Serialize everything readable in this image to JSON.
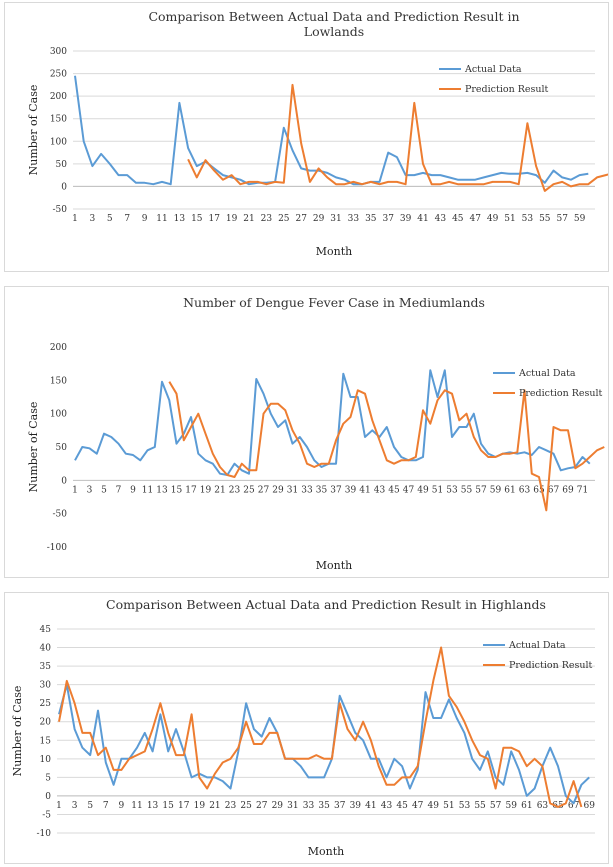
{
  "colors": {
    "actual": "#5b9bd5",
    "prediction": "#ed7d31",
    "grid": "#d9d9d9",
    "axis": "#bfbfbf"
  },
  "chart_data": [
    {
      "type": "line",
      "title": [
        "Comparison Between Actual Data and Prediction Result in",
        "Lowlands"
      ],
      "xlabel": "Month",
      "ylabel": "Number of Case",
      "ylim": [
        -50,
        300
      ],
      "yticks": [
        -50,
        0,
        50,
        100,
        150,
        200,
        250,
        300
      ],
      "xtick_labels": [
        "1",
        "3",
        "5",
        "7",
        "9",
        "11",
        "13",
        "15",
        "17",
        "19",
        "21",
        "23",
        "25",
        "27",
        "29",
        "31",
        "33",
        "35",
        "37",
        "39",
        "41",
        "43",
        "45",
        "47",
        "49",
        "51",
        "53",
        "55",
        "57",
        "59"
      ],
      "grid": true,
      "legend": "top-right",
      "series": [
        {
          "name": "Actual Data",
          "start": 1,
          "values": [
            245,
            100,
            45,
            72,
            50,
            25,
            25,
            8,
            8,
            5,
            10,
            5,
            185,
            85,
            45,
            55,
            40,
            25,
            20,
            15,
            5,
            8,
            8,
            10,
            130,
            80,
            40,
            35,
            35,
            30,
            20,
            15,
            5,
            5,
            10,
            10,
            75,
            65,
            25,
            25,
            30,
            25,
            25,
            20,
            15,
            15,
            15,
            20,
            25,
            30,
            28,
            28,
            30,
            25,
            8,
            35,
            20,
            15,
            25,
            28
          ]
        },
        {
          "name": "Prediction Result",
          "start": 14,
          "values": [
            60,
            20,
            58,
            35,
            15,
            25,
            5,
            10,
            10,
            5,
            10,
            8,
            225,
            95,
            10,
            40,
            20,
            5,
            5,
            10,
            5,
            10,
            5,
            10,
            10,
            5,
            185,
            50,
            5,
            5,
            10,
            5,
            5,
            5,
            5,
            10,
            10,
            10,
            5,
            140,
            45,
            -10,
            5,
            10,
            0,
            5,
            5,
            20,
            25,
            30
          ]
        }
      ]
    },
    {
      "type": "line",
      "title": [
        "Number of Dengue Fever Case in Mediumlands"
      ],
      "xlabel": "Month",
      "ylabel": "Number of Case",
      "ylim": [
        -100,
        200
      ],
      "yticks": [
        -100,
        -50,
        0,
        50,
        100,
        150,
        200
      ],
      "xtick_labels": [
        "1",
        "3",
        "5",
        "7",
        "9",
        "11",
        "13",
        "15",
        "17",
        "19",
        "21",
        "23",
        "25",
        "27",
        "29",
        "31",
        "33",
        "35",
        "37",
        "39",
        "41",
        "43",
        "45",
        "47",
        "49",
        "51",
        "53",
        "55",
        "57",
        "59",
        "61",
        "63",
        "65",
        "67",
        "69",
        "71"
      ],
      "grid": false,
      "legend": "top-right",
      "series": [
        {
          "name": "Actual Data",
          "start": 1,
          "values": [
            30,
            50,
            48,
            40,
            70,
            65,
            55,
            40,
            38,
            30,
            45,
            50,
            148,
            120,
            55,
            70,
            95,
            40,
            30,
            25,
            10,
            8,
            25,
            15,
            10,
            152,
            130,
            100,
            80,
            90,
            55,
            65,
            50,
            30,
            20,
            25,
            25,
            160,
            125,
            125,
            65,
            75,
            65,
            80,
            50,
            35,
            30,
            30,
            35,
            165,
            125,
            165,
            65,
            80,
            80,
            100,
            55,
            40,
            35,
            40,
            42,
            40,
            42,
            38,
            50,
            45,
            40,
            15,
            18,
            20,
            35,
            25
          ]
        },
        {
          "name": "Prediction Result",
          "start": 14,
          "values": [
            148,
            130,
            60,
            80,
            100,
            70,
            40,
            20,
            8,
            5,
            25,
            15,
            15,
            100,
            115,
            115,
            105,
            75,
            55,
            25,
            20,
            25,
            25,
            60,
            85,
            95,
            135,
            130,
            90,
            60,
            30,
            25,
            30,
            30,
            35,
            105,
            85,
            120,
            135,
            130,
            90,
            100,
            65,
            45,
            35,
            35,
            40,
            40,
            42,
            135,
            10,
            5,
            -45,
            80,
            75,
            75,
            18,
            25,
            35,
            45,
            50
          ]
        }
      ]
    },
    {
      "type": "line",
      "title": [
        "Comparison Between Actual Data and Prediction Result in Highlands"
      ],
      "xlabel": "Month",
      "ylabel": "Number of Case",
      "ylim": [
        -10,
        45
      ],
      "yticks": [
        -10,
        -5,
        0,
        5,
        10,
        15,
        20,
        25,
        30,
        35,
        40,
        45
      ],
      "xtick_labels": [
        "1",
        "3",
        "5",
        "7",
        "9",
        "11",
        "13",
        "15",
        "17",
        "19",
        "21",
        "23",
        "25",
        "27",
        "29",
        "31",
        "33",
        "35",
        "37",
        "39",
        "41",
        "43",
        "45",
        "47",
        "49",
        "51",
        "53",
        "55",
        "57",
        "59",
        "61",
        "63",
        "65",
        "67",
        "69"
      ],
      "grid": true,
      "legend": "top-right",
      "series": [
        {
          "name": "Actual Data",
          "start": 1,
          "values": [
            22,
            30,
            18,
            13,
            11,
            23,
            9,
            3,
            10,
            10,
            13,
            17,
            12,
            22,
            12,
            18,
            12,
            5,
            6,
            5,
            5,
            4,
            2,
            12,
            25,
            18,
            16,
            21,
            17,
            10,
            10,
            8,
            5,
            5,
            5,
            10,
            27,
            22,
            17,
            15,
            10,
            10,
            5,
            10,
            8,
            2,
            7,
            28,
            21,
            21,
            26,
            21,
            17,
            10,
            7,
            12,
            5,
            3,
            12,
            7,
            0,
            2,
            8,
            13,
            8,
            0,
            -2,
            3,
            5
          ]
        },
        {
          "name": "Prediction Result",
          "start": 1,
          "values": [
            20,
            31,
            25,
            17,
            17,
            11,
            13,
            7,
            7,
            10,
            11,
            12,
            18,
            25,
            17,
            11,
            11,
            22,
            5,
            2,
            6,
            9,
            10,
            13,
            20,
            14,
            14,
            17,
            17,
            10,
            10,
            10,
            10,
            11,
            10,
            10,
            25,
            18,
            15,
            20,
            15,
            8,
            3,
            3,
            5,
            5,
            8,
            20,
            31,
            40,
            27,
            24,
            20,
            15,
            11,
            10,
            2,
            13,
            13,
            12,
            8,
            10,
            8,
            -2,
            -3,
            -2,
            4,
            -3
          ]
        }
      ]
    }
  ]
}
